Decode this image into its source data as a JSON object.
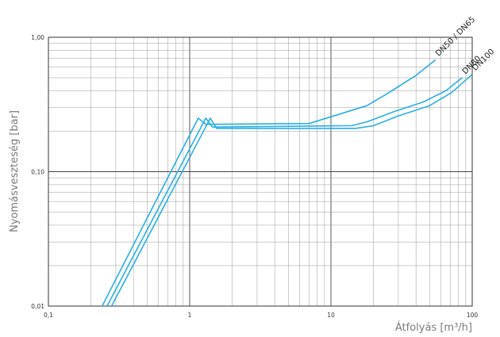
{
  "chart_data": {
    "type": "line",
    "title": "",
    "xlabel": "Átfolyás [m³/h]",
    "ylabel": "Nyomásveszteség [bar]",
    "xscale": "log",
    "yscale": "log",
    "xlim": [
      0.1,
      100
    ],
    "ylim": [
      0.01,
      1.0
    ],
    "grid": true,
    "x_ticks": [
      {
        "value": 0.1,
        "label": "0,1"
      },
      {
        "value": 1,
        "label": "1"
      },
      {
        "value": 10,
        "label": "10"
      },
      {
        "value": 100,
        "label": "100"
      }
    ],
    "y_ticks": [
      {
        "value": 0.01,
        "label": "0,01"
      },
      {
        "value": 0.1,
        "label": "0,10"
      },
      {
        "value": 1.0,
        "label": "1,00"
      }
    ],
    "series": [
      {
        "name": "DN50 / DN65",
        "color": "#29aee6",
        "points": [
          [
            0.24,
            0.01
          ],
          [
            1.15,
            0.25
          ],
          [
            1.3,
            0.225
          ],
          [
            7,
            0.228
          ],
          [
            18,
            0.31
          ],
          [
            25,
            0.38
          ],
          [
            40,
            0.52
          ],
          [
            55,
            0.68
          ]
        ]
      },
      {
        "name": "DN80",
        "color": "#29aee6",
        "points": [
          [
            0.26,
            0.01
          ],
          [
            1.3,
            0.25
          ],
          [
            1.45,
            0.215
          ],
          [
            14,
            0.22
          ],
          [
            18,
            0.235
          ],
          [
            28,
            0.28
          ],
          [
            45,
            0.33
          ],
          [
            65,
            0.4
          ],
          [
            85,
            0.5
          ]
        ]
      },
      {
        "name": "DN100",
        "color": "#29aee6",
        "points": [
          [
            0.28,
            0.01
          ],
          [
            1.4,
            0.25
          ],
          [
            1.55,
            0.21
          ],
          [
            15,
            0.21
          ],
          [
            20,
            0.22
          ],
          [
            30,
            0.26
          ],
          [
            50,
            0.31
          ],
          [
            72,
            0.39
          ],
          [
            100,
            0.53
          ]
        ]
      }
    ]
  }
}
